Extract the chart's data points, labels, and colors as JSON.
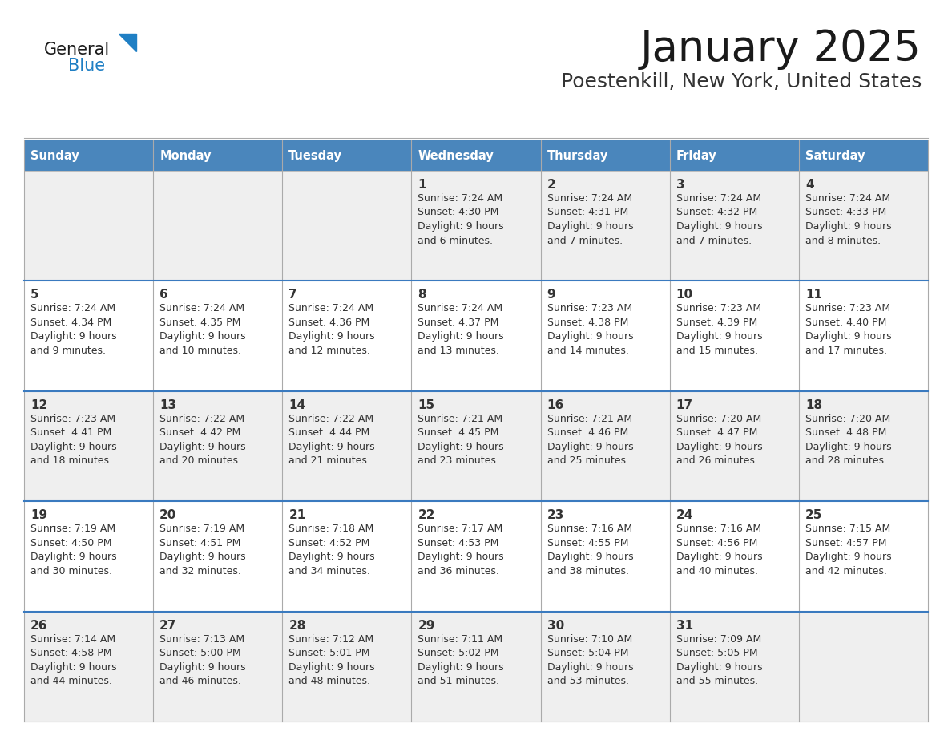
{
  "title": "January 2025",
  "subtitle": "Poestenkill, New York, United States",
  "header_bg_color": "#4a86bc",
  "header_text_color": "#FFFFFF",
  "header_days": [
    "Sunday",
    "Monday",
    "Tuesday",
    "Wednesday",
    "Thursday",
    "Friday",
    "Saturday"
  ],
  "row_bg_light": "#EFEFEF",
  "row_bg_white": "#FFFFFF",
  "cell_text_color": "#333333",
  "divider_color": "#3a7abf",
  "general_black": "#1a1a1a",
  "general_blue_color": "#1F7FC4",
  "title_color": "#1a1a1a",
  "subtitle_color": "#333333",
  "calendar": [
    [
      {
        "day": "",
        "sunrise": "",
        "sunset": "",
        "daylight_suffix": ""
      },
      {
        "day": "",
        "sunrise": "",
        "sunset": "",
        "daylight_suffix": ""
      },
      {
        "day": "",
        "sunrise": "",
        "sunset": "",
        "daylight_suffix": ""
      },
      {
        "day": "1",
        "sunrise": "7:24 AM",
        "sunset": "4:30 PM",
        "daylight_suffix": "9 hours\nand 6 minutes."
      },
      {
        "day": "2",
        "sunrise": "7:24 AM",
        "sunset": "4:31 PM",
        "daylight_suffix": "9 hours\nand 7 minutes."
      },
      {
        "day": "3",
        "sunrise": "7:24 AM",
        "sunset": "4:32 PM",
        "daylight_suffix": "9 hours\nand 7 minutes."
      },
      {
        "day": "4",
        "sunrise": "7:24 AM",
        "sunset": "4:33 PM",
        "daylight_suffix": "9 hours\nand 8 minutes."
      }
    ],
    [
      {
        "day": "5",
        "sunrise": "7:24 AM",
        "sunset": "4:34 PM",
        "daylight_suffix": "9 hours\nand 9 minutes."
      },
      {
        "day": "6",
        "sunrise": "7:24 AM",
        "sunset": "4:35 PM",
        "daylight_suffix": "9 hours\nand 10 minutes."
      },
      {
        "day": "7",
        "sunrise": "7:24 AM",
        "sunset": "4:36 PM",
        "daylight_suffix": "9 hours\nand 12 minutes."
      },
      {
        "day": "8",
        "sunrise": "7:24 AM",
        "sunset": "4:37 PM",
        "daylight_suffix": "9 hours\nand 13 minutes."
      },
      {
        "day": "9",
        "sunrise": "7:23 AM",
        "sunset": "4:38 PM",
        "daylight_suffix": "9 hours\nand 14 minutes."
      },
      {
        "day": "10",
        "sunrise": "7:23 AM",
        "sunset": "4:39 PM",
        "daylight_suffix": "9 hours\nand 15 minutes."
      },
      {
        "day": "11",
        "sunrise": "7:23 AM",
        "sunset": "4:40 PM",
        "daylight_suffix": "9 hours\nand 17 minutes."
      }
    ],
    [
      {
        "day": "12",
        "sunrise": "7:23 AM",
        "sunset": "4:41 PM",
        "daylight_suffix": "9 hours\nand 18 minutes."
      },
      {
        "day": "13",
        "sunrise": "7:22 AM",
        "sunset": "4:42 PM",
        "daylight_suffix": "9 hours\nand 20 minutes."
      },
      {
        "day": "14",
        "sunrise": "7:22 AM",
        "sunset": "4:44 PM",
        "daylight_suffix": "9 hours\nand 21 minutes."
      },
      {
        "day": "15",
        "sunrise": "7:21 AM",
        "sunset": "4:45 PM",
        "daylight_suffix": "9 hours\nand 23 minutes."
      },
      {
        "day": "16",
        "sunrise": "7:21 AM",
        "sunset": "4:46 PM",
        "daylight_suffix": "9 hours\nand 25 minutes."
      },
      {
        "day": "17",
        "sunrise": "7:20 AM",
        "sunset": "4:47 PM",
        "daylight_suffix": "9 hours\nand 26 minutes."
      },
      {
        "day": "18",
        "sunrise": "7:20 AM",
        "sunset": "4:48 PM",
        "daylight_suffix": "9 hours\nand 28 minutes."
      }
    ],
    [
      {
        "day": "19",
        "sunrise": "7:19 AM",
        "sunset": "4:50 PM",
        "daylight_suffix": "9 hours\nand 30 minutes."
      },
      {
        "day": "20",
        "sunrise": "7:19 AM",
        "sunset": "4:51 PM",
        "daylight_suffix": "9 hours\nand 32 minutes."
      },
      {
        "day": "21",
        "sunrise": "7:18 AM",
        "sunset": "4:52 PM",
        "daylight_suffix": "9 hours\nand 34 minutes."
      },
      {
        "day": "22",
        "sunrise": "7:17 AM",
        "sunset": "4:53 PM",
        "daylight_suffix": "9 hours\nand 36 minutes."
      },
      {
        "day": "23",
        "sunrise": "7:16 AM",
        "sunset": "4:55 PM",
        "daylight_suffix": "9 hours\nand 38 minutes."
      },
      {
        "day": "24",
        "sunrise": "7:16 AM",
        "sunset": "4:56 PM",
        "daylight_suffix": "9 hours\nand 40 minutes."
      },
      {
        "day": "25",
        "sunrise": "7:15 AM",
        "sunset": "4:57 PM",
        "daylight_suffix": "9 hours\nand 42 minutes."
      }
    ],
    [
      {
        "day": "26",
        "sunrise": "7:14 AM",
        "sunset": "4:58 PM",
        "daylight_suffix": "9 hours\nand 44 minutes."
      },
      {
        "day": "27",
        "sunrise": "7:13 AM",
        "sunset": "5:00 PM",
        "daylight_suffix": "9 hours\nand 46 minutes."
      },
      {
        "day": "28",
        "sunrise": "7:12 AM",
        "sunset": "5:01 PM",
        "daylight_suffix": "9 hours\nand 48 minutes."
      },
      {
        "day": "29",
        "sunrise": "7:11 AM",
        "sunset": "5:02 PM",
        "daylight_suffix": "9 hours\nand 51 minutes."
      },
      {
        "day": "30",
        "sunrise": "7:10 AM",
        "sunset": "5:04 PM",
        "daylight_suffix": "9 hours\nand 53 minutes."
      },
      {
        "day": "31",
        "sunrise": "7:09 AM",
        "sunset": "5:05 PM",
        "daylight_suffix": "9 hours\nand 55 minutes."
      },
      {
        "day": "",
        "sunrise": "",
        "sunset": "",
        "daylight_suffix": ""
      }
    ]
  ]
}
